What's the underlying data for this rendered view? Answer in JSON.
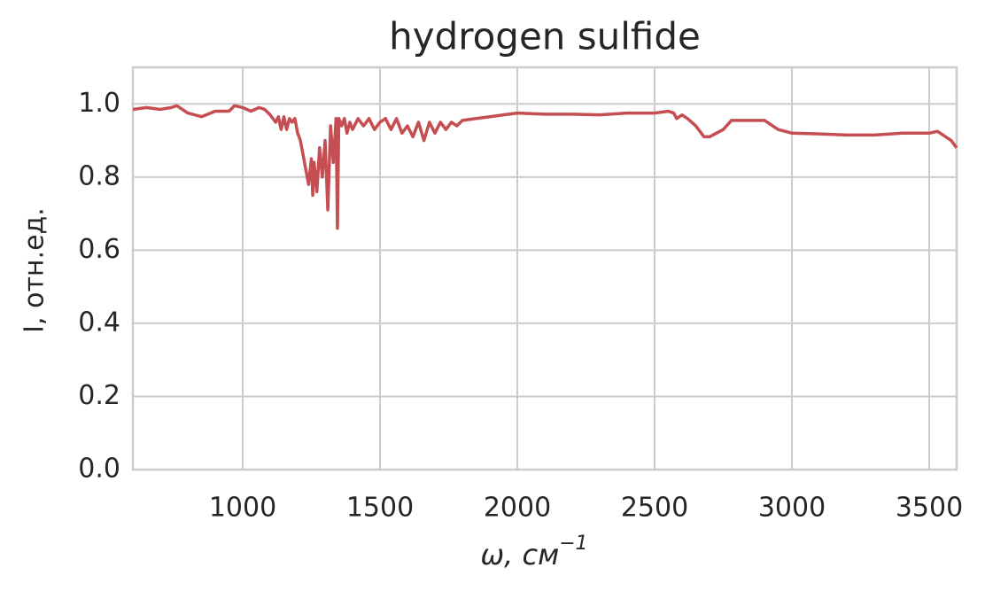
{
  "chart_data": {
    "type": "line",
    "title": "hydrogen sulfide",
    "xlabel": "ω, см",
    "xlabel_superscript": "−1",
    "ylabel": "I, отн.ед.",
    "xlim": [
      600,
      3600
    ],
    "ylim": [
      0,
      1.1
    ],
    "xticks": [
      1000,
      1500,
      2000,
      2500,
      3000,
      3500
    ],
    "yticks": [
      {
        "value": 0,
        "label": "0.0"
      },
      0.2,
      0.4,
      0.6,
      0.8,
      {
        "value": 1,
        "label": "1.0"
      }
    ],
    "grid": true,
    "series": [
      {
        "name": "hydrogen sulfide",
        "color": "#c44e52",
        "x": [
          600,
          650,
          700,
          740,
          760,
          800,
          850,
          900,
          950,
          970,
          1000,
          1030,
          1060,
          1080,
          1100,
          1120,
          1130,
          1140,
          1150,
          1160,
          1170,
          1180,
          1190,
          1200,
          1210,
          1220,
          1230,
          1240,
          1250,
          1255,
          1260,
          1270,
          1280,
          1290,
          1300,
          1310,
          1320,
          1330,
          1340,
          1345,
          1350,
          1360,
          1370,
          1380,
          1390,
          1400,
          1420,
          1440,
          1460,
          1480,
          1500,
          1520,
          1540,
          1560,
          1580,
          1600,
          1620,
          1640,
          1660,
          1680,
          1700,
          1720,
          1740,
          1760,
          1780,
          1800,
          1850,
          1900,
          1950,
          2000,
          2100,
          2200,
          2300,
          2400,
          2500,
          2550,
          2570,
          2580,
          2600,
          2620,
          2650,
          2680,
          2700,
          2750,
          2780,
          2850,
          2900,
          2950,
          3000,
          3100,
          3200,
          3300,
          3400,
          3450,
          3500,
          3530,
          3550,
          3580,
          3600
        ],
        "values": [
          0.985,
          0.99,
          0.985,
          0.99,
          0.995,
          0.975,
          0.965,
          0.98,
          0.98,
          0.995,
          0.99,
          0.98,
          0.99,
          0.985,
          0.97,
          0.95,
          0.965,
          0.93,
          0.965,
          0.93,
          0.96,
          0.95,
          0.96,
          0.92,
          0.9,
          0.86,
          0.82,
          0.78,
          0.85,
          0.75,
          0.84,
          0.76,
          0.88,
          0.8,
          0.9,
          0.71,
          0.94,
          0.84,
          0.96,
          0.66,
          0.96,
          0.94,
          0.96,
          0.92,
          0.95,
          0.93,
          0.96,
          0.94,
          0.96,
          0.93,
          0.95,
          0.96,
          0.93,
          0.96,
          0.92,
          0.94,
          0.91,
          0.95,
          0.9,
          0.95,
          0.92,
          0.95,
          0.93,
          0.95,
          0.94,
          0.955,
          0.96,
          0.965,
          0.97,
          0.975,
          0.972,
          0.972,
          0.97,
          0.975,
          0.975,
          0.98,
          0.975,
          0.96,
          0.97,
          0.96,
          0.94,
          0.91,
          0.91,
          0.93,
          0.955,
          0.955,
          0.955,
          0.93,
          0.92,
          0.918,
          0.915,
          0.915,
          0.92,
          0.92,
          0.92,
          0.925,
          0.915,
          0.9,
          0.88
        ]
      }
    ]
  }
}
